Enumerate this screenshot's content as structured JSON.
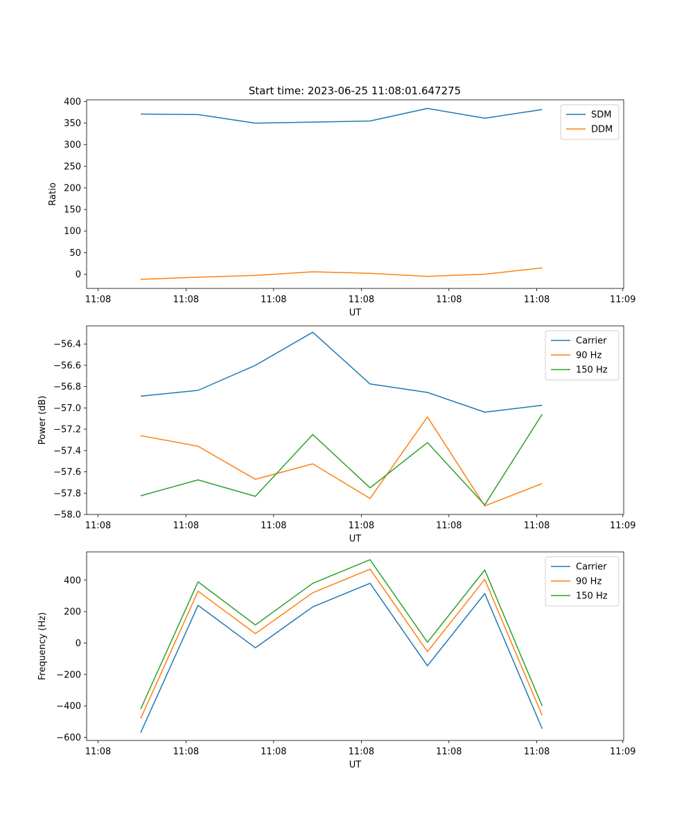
{
  "figure": {
    "title": "Start time: 2023-06-25 11:08:01.647275"
  },
  "chart_data": [
    {
      "type": "line",
      "title": "Start time: 2023-06-25 11:08:01.647275",
      "xlabel": "UT",
      "ylabel": "Ratio",
      "x_tick_labels": [
        "11:08",
        "11:08",
        "11:08",
        "11:08",
        "11:08",
        "11:08",
        "11:09"
      ],
      "y_ticks": [
        0,
        50,
        100,
        150,
        200,
        250,
        300,
        350,
        400
      ],
      "y_tick_labels": [
        "0",
        "50",
        "100",
        "150",
        "200",
        "250",
        "300",
        "350",
        "400"
      ],
      "ylim": [
        -33,
        404
      ],
      "grid": false,
      "legend_position": "top-right",
      "series": [
        {
          "name": "SDM",
          "color": "#1f77b4",
          "values": [
            371,
            370,
            350,
            352.5,
            355,
            384,
            361.5,
            381.5
          ]
        },
        {
          "name": "DDM",
          "color": "#ff7f0e",
          "values": [
            -12,
            -7,
            -3,
            5.5,
            2,
            -5,
            0,
            14.5
          ]
        }
      ]
    },
    {
      "type": "line",
      "xlabel": "UT",
      "ylabel": "Power (dB)",
      "x_tick_labels": [
        "11:08",
        "11:08",
        "11:08",
        "11:08",
        "11:08",
        "11:08",
        "11:09"
      ],
      "y_ticks": [
        -58.0,
        -57.8,
        -57.6,
        -57.4,
        -57.2,
        -57.0,
        -56.8,
        -56.6,
        -56.4
      ],
      "y_tick_labels": [
        "−58.0",
        "−57.8",
        "−57.6",
        "−57.4",
        "−57.2",
        "−57.0",
        "−56.8",
        "−56.6",
        "−56.4"
      ],
      "ylim": [
        -58.0,
        -56.23
      ],
      "grid": false,
      "legend_position": "top-right",
      "series": [
        {
          "name": "Carrier",
          "color": "#1f77b4",
          "values": [
            -56.89,
            -56.835,
            -56.6,
            -56.29,
            -56.775,
            -56.855,
            -57.04,
            -56.975
          ]
        },
        {
          "name": "90 Hz",
          "color": "#ff7f0e",
          "values": [
            -57.26,
            -57.36,
            -57.67,
            -57.525,
            -57.85,
            -57.085,
            -57.92,
            -57.71
          ]
        },
        {
          "name": "150 Hz",
          "color": "#2ca02c",
          "values": [
            -57.825,
            -57.675,
            -57.83,
            -57.25,
            -57.75,
            -57.325,
            -57.91,
            -57.06
          ]
        }
      ]
    },
    {
      "type": "line",
      "xlabel": "UT",
      "ylabel": "Frequency (Hz)",
      "x_tick_labels": [
        "11:08",
        "11:08",
        "11:08",
        "11:08",
        "11:08",
        "11:08",
        "11:09"
      ],
      "y_ticks": [
        -600,
        -400,
        -200,
        0,
        200,
        400
      ],
      "y_tick_labels": [
        "−600",
        "−400",
        "−200",
        "0",
        "200",
        "400"
      ],
      "ylim": [
        -620,
        580
      ],
      "grid": false,
      "legend_position": "top-right",
      "series": [
        {
          "name": "Carrier",
          "color": "#1f77b4",
          "values": [
            -570,
            240,
            -30,
            230,
            380,
            -145,
            315,
            -545
          ]
        },
        {
          "name": "90 Hz",
          "color": "#ff7f0e",
          "values": [
            -480,
            330,
            60,
            320,
            470,
            -55,
            405,
            -460
          ]
        },
        {
          "name": "150 Hz",
          "color": "#2ca02c",
          "values": [
            -420,
            390,
            115,
            380,
            530,
            5,
            465,
            -400
          ]
        }
      ]
    }
  ]
}
